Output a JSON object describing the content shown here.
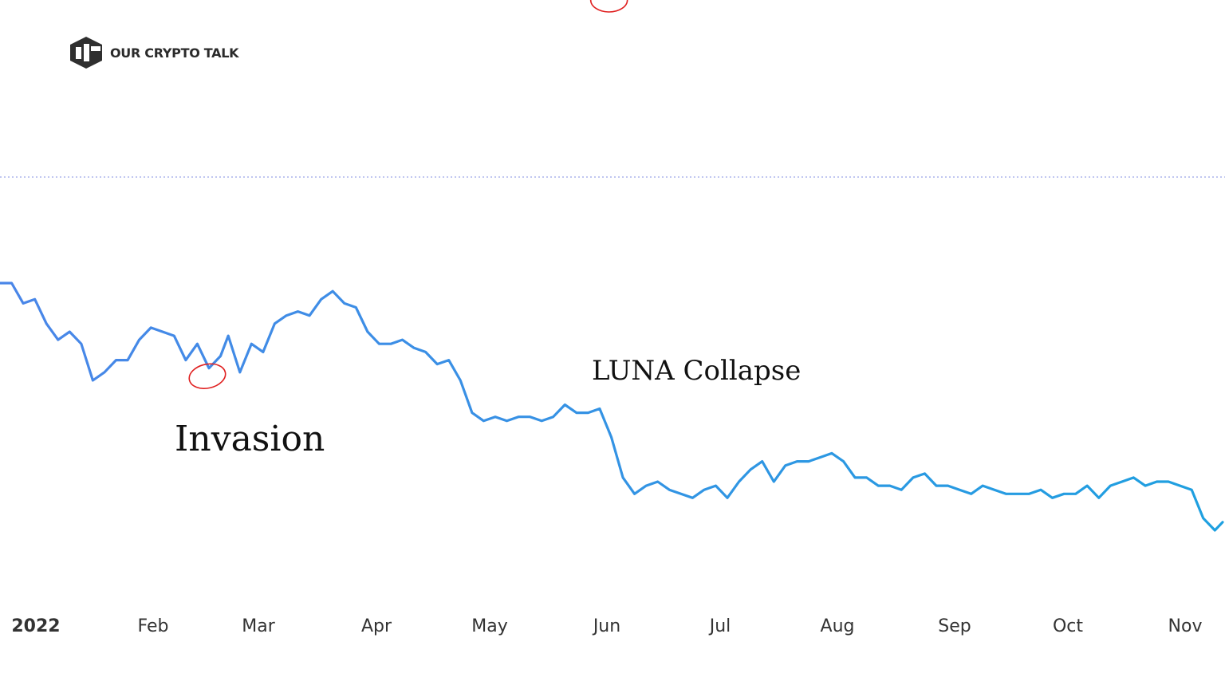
{
  "brand": {
    "name": "OUR CRYPTO TALK",
    "logo_color": "#2f2f2f"
  },
  "chart_data": {
    "type": "line",
    "title": "",
    "xlabel": "",
    "ylabel": "",
    "grid": false,
    "reference_line": {
      "style": "dotted",
      "color": "#9aa3e8"
    },
    "x_ticks": [
      "2022",
      "Feb",
      "Mar",
      "Apr",
      "May",
      "Jun",
      "Jul",
      "Aug",
      "Sep",
      "Oct",
      "Nov"
    ],
    "line_color_start": "#4a86e8",
    "line_color_end": "#1ea0e0",
    "series": [
      {
        "x": [
          "2022-01-01",
          "2022-01-04",
          "2022-01-07",
          "2022-01-10",
          "2022-01-13",
          "2022-01-16",
          "2022-01-19",
          "2022-01-22",
          "2022-01-25",
          "2022-01-28",
          "2022-01-31",
          "2022-02-03",
          "2022-02-06",
          "2022-02-09",
          "2022-02-12",
          "2022-02-15",
          "2022-02-18",
          "2022-02-21",
          "2022-02-24",
          "2022-02-27",
          "2022-03-01",
          "2022-03-04",
          "2022-03-07",
          "2022-03-10",
          "2022-03-13",
          "2022-03-16",
          "2022-03-19",
          "2022-03-22",
          "2022-03-25",
          "2022-03-28",
          "2022-03-31",
          "2022-04-03",
          "2022-04-06",
          "2022-04-09",
          "2022-04-12",
          "2022-04-15",
          "2022-04-18",
          "2022-04-21",
          "2022-04-24",
          "2022-04-27",
          "2022-04-30",
          "2022-05-03",
          "2022-05-06",
          "2022-05-09",
          "2022-05-12",
          "2022-05-15",
          "2022-05-18",
          "2022-05-21",
          "2022-05-24",
          "2022-05-27",
          "2022-05-30",
          "2022-06-02",
          "2022-06-05",
          "2022-06-08",
          "2022-06-11",
          "2022-06-14",
          "2022-06-17",
          "2022-06-20",
          "2022-06-23",
          "2022-06-26",
          "2022-06-29",
          "2022-07-02",
          "2022-07-05",
          "2022-07-08",
          "2022-07-11",
          "2022-07-14",
          "2022-07-17",
          "2022-07-20",
          "2022-07-23",
          "2022-07-26",
          "2022-07-29",
          "2022-08-01",
          "2022-08-04",
          "2022-08-07",
          "2022-08-10",
          "2022-08-13",
          "2022-08-16",
          "2022-08-19",
          "2022-08-22",
          "2022-08-25",
          "2022-08-28",
          "2022-08-31",
          "2022-09-03",
          "2022-09-06",
          "2022-09-09",
          "2022-09-12",
          "2022-09-15",
          "2022-09-18",
          "2022-09-21",
          "2022-09-24",
          "2022-09-27",
          "2022-09-30",
          "2022-10-03",
          "2022-10-06",
          "2022-10-09",
          "2022-10-12",
          "2022-10-15",
          "2022-10-18",
          "2022-10-21",
          "2022-10-24",
          "2022-10-27",
          "2022-10-30",
          "2022-11-02",
          "2022-11-05",
          "2022-11-08",
          "2022-11-11",
          "2022-11-13"
        ],
        "values": [
          46.5,
          46.5,
          44.0,
          44.5,
          41.5,
          39.5,
          40.5,
          39.0,
          34.5,
          35.5,
          37.0,
          37.0,
          39.5,
          41.0,
          40.5,
          40.0,
          37.0,
          39.0,
          36.0,
          37.5,
          40.0,
          35.5,
          39.0,
          38.0,
          41.5,
          42.5,
          43.0,
          42.5,
          44.5,
          45.5,
          44.0,
          43.5,
          40.5,
          39.0,
          39.0,
          39.5,
          38.5,
          38.0,
          36.5,
          37.0,
          34.5,
          30.5,
          29.5,
          30.0,
          29.5,
          30.0,
          30.0,
          29.5,
          30.0,
          31.5,
          30.5,
          30.5,
          31.0,
          27.5,
          22.5,
          20.5,
          21.5,
          22.0,
          21.0,
          20.5,
          20.0,
          21.0,
          21.5,
          20.0,
          22.0,
          23.5,
          24.5,
          22.0,
          24.0,
          24.5,
          24.5,
          25.0,
          25.5,
          24.5,
          22.5,
          22.5,
          21.5,
          21.5,
          21.0,
          22.5,
          23.0,
          21.5,
          21.5,
          21.0,
          20.5,
          21.5,
          21.0,
          20.5,
          20.5,
          20.5,
          21.0,
          20.0,
          20.5,
          20.5,
          21.5,
          20.0,
          21.5,
          22.0,
          22.5,
          21.5,
          22.0,
          22.0,
          21.5,
          21.0,
          17.5,
          16.0,
          17.0
        ]
      }
    ],
    "annotations": [
      {
        "label": "Invasion",
        "date": "2022-02-24"
      },
      {
        "label": "LUNA Collapse",
        "date": "2022-06-07"
      }
    ],
    "marker_color": "#e02020"
  }
}
